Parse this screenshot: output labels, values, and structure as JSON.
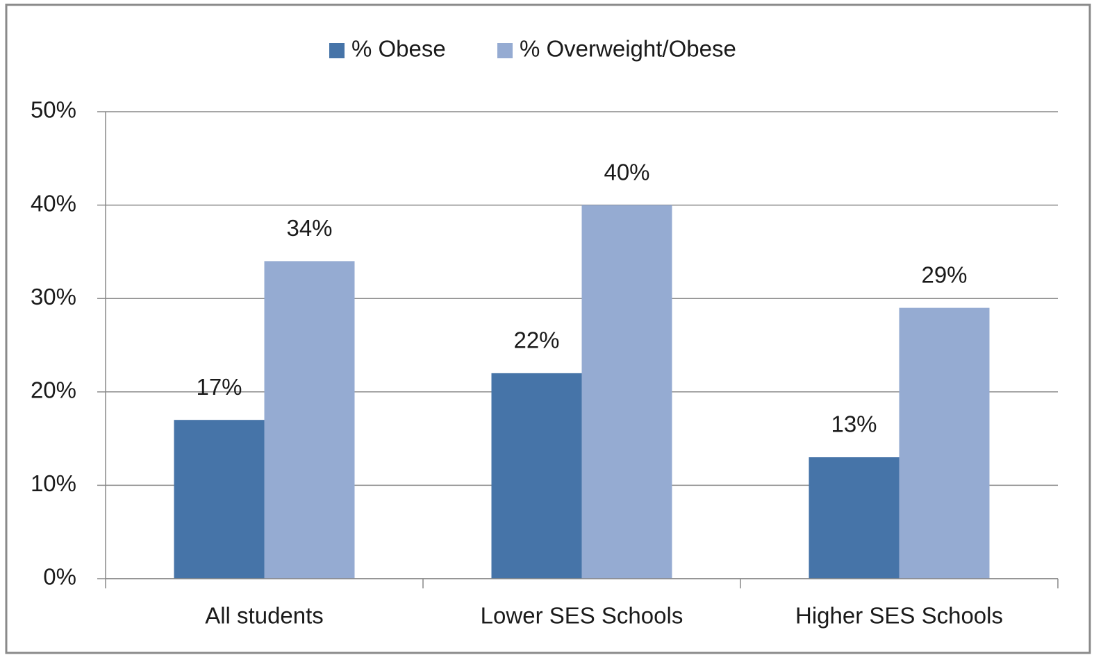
{
  "chart_data": {
    "type": "bar",
    "categories": [
      "All students",
      "Lower SES Schools",
      "Higher SES Schools"
    ],
    "series": [
      {
        "name": "% Obese",
        "color": "#4674a8",
        "values": [
          17,
          22,
          13
        ],
        "value_labels": [
          "17%",
          "22%",
          "13%"
        ]
      },
      {
        "name": "% Overweight/Obese",
        "color": "#95abd2",
        "values": [
          34,
          40,
          29
        ],
        "value_labels": [
          "34%",
          "40%",
          "29%"
        ]
      }
    ],
    "ylim": [
      0,
      50
    ],
    "yticks": [
      {
        "value": 0,
        "label": "0%"
      },
      {
        "value": 10,
        "label": "10%"
      },
      {
        "value": 20,
        "label": "20%"
      },
      {
        "value": 30,
        "label": "30%"
      },
      {
        "value": 40,
        "label": "40%"
      },
      {
        "value": 50,
        "label": "50%"
      }
    ],
    "grid": true,
    "legend": "top"
  }
}
